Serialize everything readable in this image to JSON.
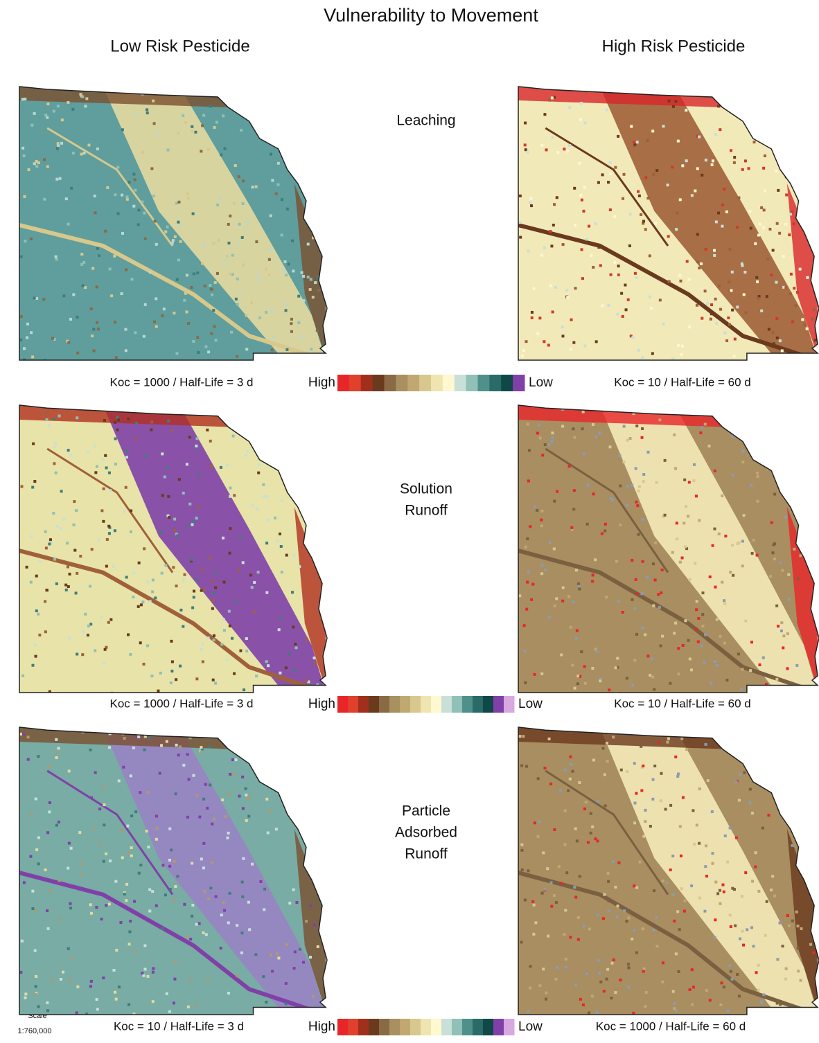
{
  "title": "Vulnerability to Movement",
  "columns": [
    "Low Risk Pesticide",
    "High Risk Pesticide"
  ],
  "rows": [
    {
      "label": [
        "Leaching"
      ],
      "left_caption": "Koc = 1000 / Half-Life = 3 d",
      "right_caption": "Koc = 10 / Half-Life = 60 d",
      "legend_high": "High",
      "legend_low": "Low"
    },
    {
      "label": [
        "Solution",
        "Runoff"
      ],
      "left_caption": "Koc = 1000 / Half-Life = 3 d",
      "right_caption": "Koc = 10 / Half-Life = 60 d",
      "legend_high": "High",
      "legend_low": "Low"
    },
    {
      "label": [
        "Particle",
        "Adsorbed",
        "Runoff"
      ],
      "left_caption": "Koc = 10 / Half-Life = 3 d",
      "right_caption": "Koc = 1000 / Half-Life = 60 d",
      "legend_high": "High",
      "legend_low": "Low"
    }
  ],
  "scale": {
    "label": "Scale",
    "value": "1:760,000"
  }
}
